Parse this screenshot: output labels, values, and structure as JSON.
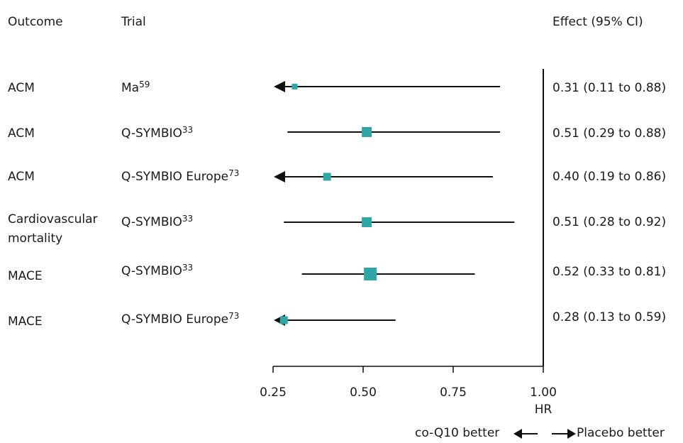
{
  "headers": {
    "outcome": "Outcome",
    "trial": "Trial",
    "effect": "Effect (95% CI)"
  },
  "rows": [
    {
      "outcome": "ACM",
      "outcome_line2": "",
      "trial": "Ma",
      "ref": "59",
      "effect": "0.31 (0.11 to 0.88)"
    },
    {
      "outcome": "ACM",
      "outcome_line2": "",
      "trial": "Q-SYMBIO",
      "ref": "33",
      "effect": "0.51 (0.29 to 0.88)"
    },
    {
      "outcome": "ACM",
      "outcome_line2": "",
      "trial": "Q-SYMBIO Europe",
      "ref": "73",
      "effect": "0.40 (0.19 to 0.86)"
    },
    {
      "outcome": "Cardiovascular",
      "outcome_line2": "mortality",
      "trial": "Q-SYMBIO",
      "ref": "33",
      "effect": "0.51 (0.28 to 0.92)"
    },
    {
      "outcome": "MACE",
      "outcome_line2": "",
      "trial": "Q-SYMBIO",
      "ref": "33",
      "effect": "0.52 (0.33 to 0.81)"
    },
    {
      "outcome": "MACE",
      "outcome_line2": "",
      "trial": "Q-SYMBIO Europe",
      "ref": "73",
      "effect": "0.28 (0.13 to 0.59)"
    }
  ],
  "chart_data": {
    "type": "forest",
    "xlabel": "HR",
    "ticks": [
      "0.25",
      "0.50",
      "0.75",
      "1.00"
    ],
    "tick_values": [
      0.25,
      0.5,
      0.75,
      1.0
    ],
    "xlim": [
      0.25,
      1.0
    ],
    "reference_line": 1.0,
    "estimates": [
      0.31,
      0.51,
      0.4,
      0.51,
      0.52,
      0.28
    ],
    "ci_lower": [
      0.11,
      0.29,
      0.19,
      0.28,
      0.33,
      0.13
    ],
    "ci_upper": [
      0.88,
      0.88,
      0.86,
      0.92,
      0.81,
      0.59
    ],
    "marker_color": "#2fa7a7"
  },
  "footer": {
    "left_label": "co-Q10 better",
    "right_label": "Placebo better"
  }
}
